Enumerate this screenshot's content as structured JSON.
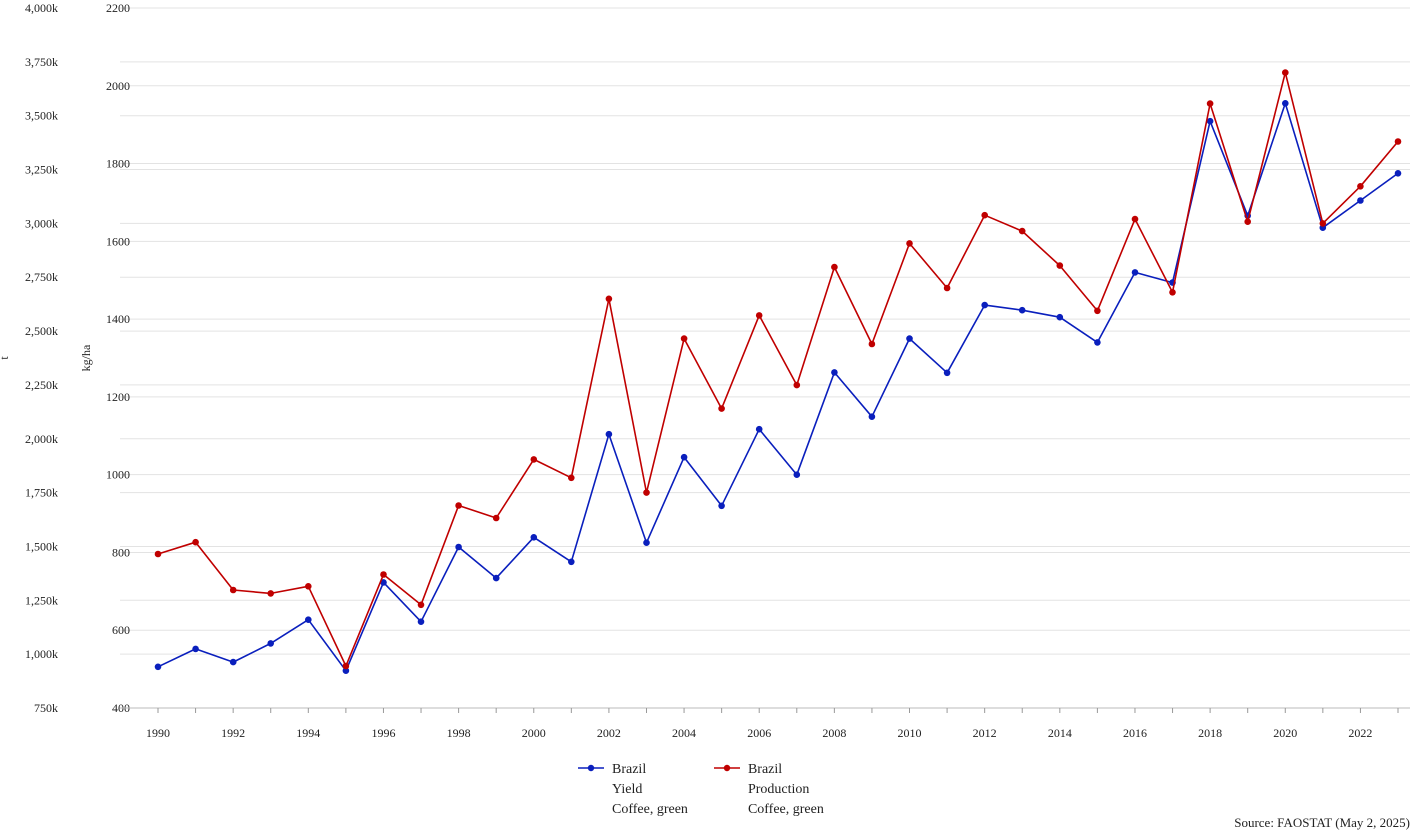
{
  "chart_data": {
    "type": "line",
    "x": [
      1990,
      1991,
      1992,
      1993,
      1994,
      1995,
      1996,
      1997,
      1998,
      1999,
      2000,
      2001,
      2002,
      2003,
      2004,
      2005,
      2006,
      2007,
      2008,
      2009,
      2010,
      2011,
      2012,
      2013,
      2014,
      2015,
      2016,
      2017,
      2018,
      2019,
      2020,
      2021,
      2022,
      2023
    ],
    "x_ticks": [
      "1990",
      "1992",
      "1994",
      "1996",
      "1998",
      "2000",
      "2002",
      "2004",
      "2006",
      "2008",
      "2010",
      "2012",
      "2014",
      "2016",
      "2018",
      "2020",
      "2022"
    ],
    "y_left": {
      "label": "t",
      "range": [
        750000,
        4000000
      ],
      "ticks": [
        "750k",
        "1,000k",
        "1,250k",
        "1,500k",
        "1,750k",
        "2,000k",
        "2,250k",
        "2,500k",
        "2,750k",
        "3,000k",
        "3,250k",
        "3,500k",
        "3,750k",
        "4,000k"
      ]
    },
    "y_right": {
      "label": "kg/ha",
      "range": [
        400,
        2200
      ],
      "ticks": [
        "400",
        "600",
        "800",
        "1000",
        "1200",
        "1400",
        "1600",
        "1800",
        "2000",
        "2200"
      ]
    },
    "grid": true,
    "legend_position": "bottom",
    "series": [
      {
        "name_lines": [
          "Brazil",
          "Yield",
          "Coffee, green"
        ],
        "axis": "right",
        "color": "#0a1fbd",
        "values": [
          506,
          552,
          518,
          566,
          627,
          496,
          723,
          622,
          814,
          734,
          839,
          776,
          1104,
          825,
          1045,
          920,
          1117,
          1000,
          1263,
          1149,
          1350,
          1262,
          1436,
          1423,
          1405,
          1340,
          1520,
          1494,
          1909,
          1666,
          1955,
          1635,
          1705,
          1775
        ]
      },
      {
        "name_lines": [
          "Brazil",
          "Production",
          "Coffee, green"
        ],
        "axis": "left",
        "color": "#c00000",
        "values": [
          1465000,
          1520000,
          1298000,
          1282000,
          1315000,
          945000,
          1370000,
          1229000,
          1690000,
          1632000,
          1904000,
          1819000,
          2650000,
          1750000,
          2465000,
          2140000,
          2573000,
          2249000,
          2797000,
          2440000,
          2907000,
          2700000,
          3038000,
          2964000,
          2804000,
          2594000,
          3020000,
          2680000,
          3556000,
          3008000,
          3700000,
          3000000,
          3172000,
          3380000
        ]
      }
    ],
    "source": "Source: FAOSTAT (May 2, 2025)"
  }
}
